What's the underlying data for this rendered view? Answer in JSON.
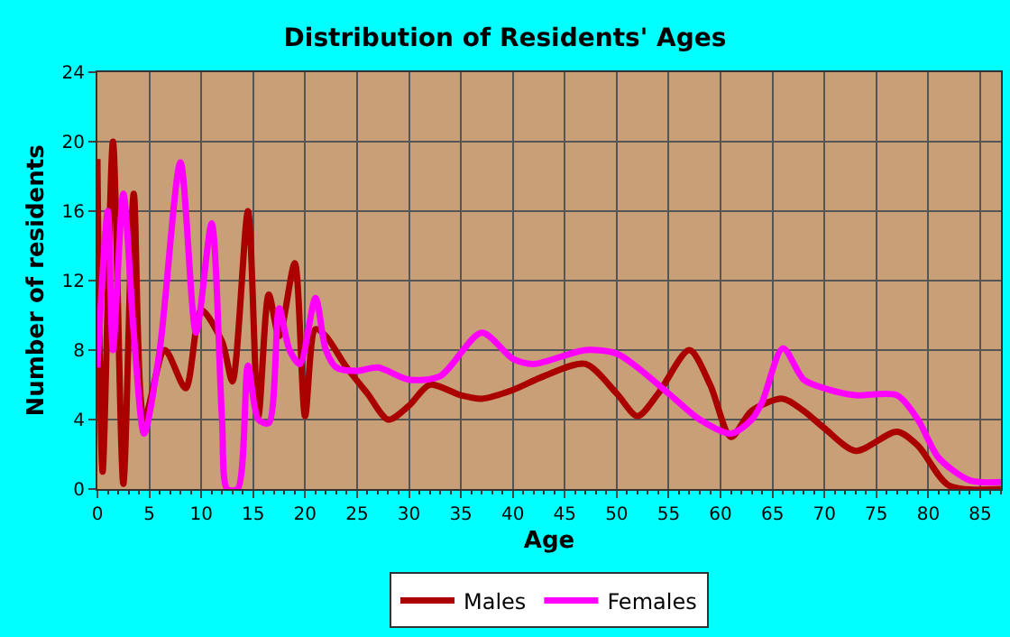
{
  "chart_data": {
    "type": "line",
    "title": "Distribution of Residents' Ages",
    "xlabel": "Age",
    "ylabel": "Number of residents",
    "xlim": [
      0,
      87
    ],
    "xticks": [
      0,
      5,
      10,
      15,
      20,
      25,
      30,
      35,
      40,
      45,
      50,
      55,
      60,
      65,
      70,
      75,
      80,
      85
    ],
    "ylim": [
      0,
      24
    ],
    "yticks": [
      0,
      4,
      8,
      12,
      16,
      20,
      24
    ],
    "grid": true,
    "legend": "bottom",
    "line_style": "solid",
    "series": [
      {
        "name": "Males",
        "color": "#aa0000",
        "x": [
          0,
          0.5,
          1.5,
          2.5,
          3.5,
          4.5,
          6.5,
          8.5,
          10,
          12,
          13,
          14.5,
          15.5,
          16.5,
          17.5,
          19,
          20,
          21,
          22,
          24,
          26,
          28,
          30,
          32,
          35,
          37,
          40,
          43,
          47,
          50,
          52,
          54,
          57,
          59,
          61,
          63,
          66,
          68,
          70,
          73,
          77,
          79,
          82,
          87
        ],
        "values": [
          19,
          1,
          20,
          0.3,
          17,
          4,
          8,
          5.8,
          10.3,
          8.5,
          6.2,
          16,
          4.2,
          11.2,
          8.8,
          13,
          4.2,
          9.2,
          8.8,
          7,
          5.5,
          4,
          4.8,
          6,
          5.4,
          5.2,
          5.7,
          6.5,
          7.2,
          5.5,
          4.2,
          5.5,
          8,
          6,
          3,
          4.5,
          5.2,
          4.5,
          3.5,
          2.2,
          3.3,
          2.5,
          0.2,
          0
        ]
      },
      {
        "name": "Females",
        "color": "#ff00ff",
        "x": [
          0,
          1,
          1.5,
          2.5,
          3.5,
          4.5,
          6,
          8,
          9.5,
          11,
          12,
          12.5,
          13.5,
          14.5,
          15.5,
          16.5,
          17.5,
          18.5,
          19.5,
          21,
          22,
          23,
          25,
          27,
          30,
          33,
          37,
          40,
          42,
          47,
          50,
          52,
          55,
          58,
          61,
          63,
          64,
          66,
          68,
          70,
          73,
          77,
          79,
          81,
          84,
          87
        ],
        "values": [
          7,
          16,
          8,
          17,
          9,
          3.2,
          8,
          18.8,
          9,
          15.3,
          4,
          0,
          0,
          7.1,
          4,
          3.8,
          10.4,
          8,
          7.2,
          11,
          8,
          7,
          6.8,
          7,
          6.3,
          6.5,
          9,
          7.5,
          7.2,
          8,
          7.8,
          7,
          5.5,
          4,
          3.2,
          4,
          5,
          8.1,
          6.3,
          5.8,
          5.4,
          5.4,
          4,
          1.8,
          0.5,
          0.4
        ]
      }
    ]
  }
}
